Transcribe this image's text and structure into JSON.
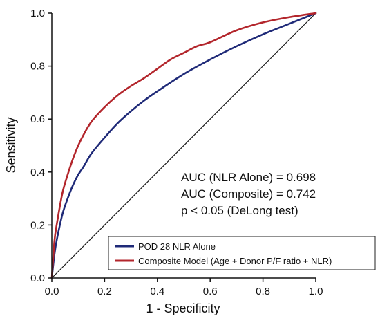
{
  "chart_data": {
    "type": "line",
    "title": "",
    "xlabel": "1 - Specificity",
    "ylabel": "Sensitivity",
    "xlim": [
      0,
      1
    ],
    "ylim": [
      0,
      1
    ],
    "xticks": [
      "0.0",
      "0.2",
      "0.4",
      "0.6",
      "0.8",
      "1.0"
    ],
    "yticks": [
      "0.0",
      "0.2",
      "0.4",
      "0.6",
      "0.8",
      "1.0"
    ],
    "grid": false,
    "legend_position": "bottom-right",
    "annotations": [
      "AUC (NLR Alone) = 0.698",
      "AUC (Composite) = 0.742",
      "p < 0.05 (DeLong test)"
    ],
    "reference_line": {
      "x": [
        0,
        1
      ],
      "y": [
        0,
        1
      ],
      "color": "#1a1a1a"
    },
    "series": [
      {
        "name": "POD 28 NLR Alone",
        "color": "#1f2a78",
        "x": [
          0,
          0.01,
          0.02,
          0.04,
          0.06,
          0.08,
          0.1,
          0.12,
          0.15,
          0.2,
          0.25,
          0.3,
          0.35,
          0.4,
          0.5,
          0.6,
          0.7,
          0.8,
          0.9,
          1.0
        ],
        "y": [
          0,
          0.09,
          0.15,
          0.24,
          0.3,
          0.35,
          0.39,
          0.42,
          0.47,
          0.53,
          0.585,
          0.63,
          0.67,
          0.705,
          0.77,
          0.825,
          0.875,
          0.92,
          0.96,
          1.0
        ]
      },
      {
        "name": "Composite Model (Age + Donor P/F ratio + NLR)",
        "color": "#b3262c",
        "x": [
          0,
          0.01,
          0.02,
          0.04,
          0.06,
          0.08,
          0.1,
          0.12,
          0.15,
          0.2,
          0.25,
          0.3,
          0.35,
          0.4,
          0.45,
          0.5,
          0.55,
          0.6,
          0.7,
          0.8,
          0.9,
          1.0
        ],
        "y": [
          0,
          0.14,
          0.21,
          0.32,
          0.39,
          0.45,
          0.5,
          0.54,
          0.59,
          0.645,
          0.69,
          0.725,
          0.755,
          0.79,
          0.825,
          0.85,
          0.875,
          0.89,
          0.935,
          0.965,
          0.985,
          1.0
        ]
      }
    ]
  }
}
